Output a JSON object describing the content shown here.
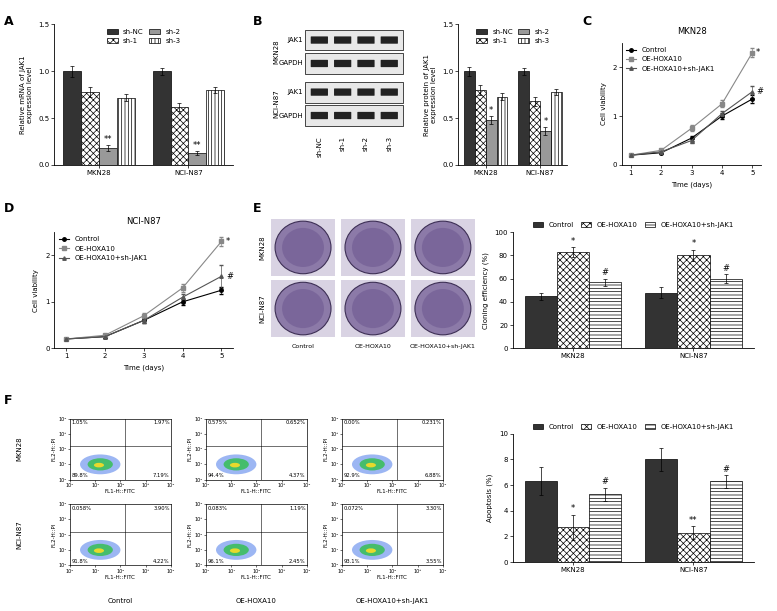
{
  "chart_data": [
    {
      "type": "bar",
      "panel_label": "A",
      "ylabel": "Relative mRNA of JAK1\nexpression level",
      "categories": [
        "MKN28",
        "NCI-N87"
      ],
      "ylim": [
        0.0,
        1.5
      ],
      "yticks": [
        0.0,
        0.5,
        1.0,
        1.5
      ],
      "legend": "upper center",
      "series": [
        {
          "name": "sh-NC",
          "color": "#333333",
          "values": [
            1.0,
            1.0
          ],
          "errors": [
            0.06,
            0.04
          ],
          "annotations": [
            null,
            null
          ]
        },
        {
          "name": "sh-1",
          "color": "#ffffff",
          "values": [
            0.78,
            0.62
          ],
          "errors": [
            0.05,
            0.04
          ],
          "annotations": [
            null,
            null
          ]
        },
        {
          "name": "sh-2",
          "color": "#999999",
          "values": [
            0.18,
            0.13
          ],
          "errors": [
            0.03,
            0.02
          ],
          "annotations": [
            "**",
            "**"
          ]
        },
        {
          "name": "sh-3",
          "color": "#ffffff",
          "values": [
            0.72,
            0.8
          ],
          "errors": [
            0.04,
            0.03
          ],
          "annotations": [
            null,
            null
          ]
        }
      ]
    },
    {
      "type": "bar",
      "ylabel": "Relative protein of JAK1\nexpression level",
      "categories": [
        "MKN28",
        "NCI-N87"
      ],
      "ylim": [
        0.0,
        1.5
      ],
      "yticks": [
        0.0,
        0.5,
        1.0,
        1.5
      ],
      "legend": "upper center",
      "series": [
        {
          "name": "sh-NC",
          "color": "#333333",
          "values": [
            1.0,
            1.0
          ],
          "errors": [
            0.05,
            0.04
          ],
          "annotations": [
            null,
            null
          ]
        },
        {
          "name": "sh-1",
          "color": "#ffffff",
          "values": [
            0.8,
            0.68
          ],
          "errors": [
            0.05,
            0.05
          ],
          "annotations": [
            null,
            null
          ]
        },
        {
          "name": "sh-2",
          "color": "#999999",
          "values": [
            0.48,
            0.36
          ],
          "errors": [
            0.04,
            0.04
          ],
          "annotations": [
            "*",
            "*"
          ]
        },
        {
          "name": "sh-3",
          "color": "#ffffff",
          "values": [
            0.73,
            0.78
          ],
          "errors": [
            0.04,
            0.03
          ],
          "annotations": [
            null,
            null
          ]
        }
      ]
    },
    {
      "type": "line",
      "panel_label": "C",
      "title": "MKN28",
      "xlabel": "Time (days)",
      "ylabel": "Cell viability",
      "x": [
        1,
        2,
        3,
        4,
        5
      ],
      "xlim": [
        0.7,
        5.3
      ],
      "xticks": [
        1,
        2,
        3,
        4,
        5
      ],
      "ylim": [
        0,
        2.5
      ],
      "yticks": [
        0,
        1,
        2
      ],
      "legend": "upper left",
      "series": [
        {
          "name": "Control",
          "color": "#000000",
          "marker": "circle",
          "values": [
            0.2,
            0.25,
            0.55,
            1.0,
            1.35
          ],
          "errors": [
            0.02,
            0.03,
            0.05,
            0.06,
            0.08
          ],
          "annotations": [
            null,
            null,
            null,
            null,
            null
          ]
        },
        {
          "name": "OE-HOXA10",
          "color": "#888888",
          "marker": "square",
          "values": [
            0.2,
            0.3,
            0.75,
            1.25,
            2.3
          ],
          "errors": [
            0.02,
            0.03,
            0.06,
            0.07,
            0.1
          ],
          "annotations": [
            null,
            null,
            null,
            null,
            "*"
          ]
        },
        {
          "name": "OE-HOXA10+sh-JAK1",
          "color": "#555555",
          "marker": "triangle",
          "values": [
            0.2,
            0.27,
            0.5,
            1.05,
            1.5
          ],
          "errors": [
            0.02,
            0.03,
            0.05,
            0.06,
            0.12
          ],
          "annotations": [
            null,
            null,
            null,
            null,
            "#"
          ]
        }
      ]
    },
    {
      "type": "line",
      "panel_label": "D",
      "title": "NCI-N87",
      "xlabel": "Time (days)",
      "ylabel": "Cell viability",
      "x": [
        1,
        2,
        3,
        4,
        5
      ],
      "xlim": [
        0.7,
        5.3
      ],
      "xticks": [
        1,
        2,
        3,
        4,
        5
      ],
      "ylim": [
        0,
        2.5
      ],
      "yticks": [
        0,
        1,
        2
      ],
      "legend": "upper left",
      "series": [
        {
          "name": "Control",
          "color": "#000000",
          "marker": "circle",
          "values": [
            0.2,
            0.25,
            0.6,
            1.0,
            1.25
          ],
          "errors": [
            0.02,
            0.03,
            0.05,
            0.06,
            0.08
          ],
          "annotations": [
            null,
            null,
            null,
            null,
            null
          ]
        },
        {
          "name": "OE-HOXA10",
          "color": "#888888",
          "marker": "square",
          "values": [
            0.2,
            0.28,
            0.7,
            1.3,
            2.3
          ],
          "errors": [
            0.02,
            0.03,
            0.06,
            0.08,
            0.1
          ],
          "annotations": [
            null,
            null,
            null,
            null,
            "*"
          ]
        },
        {
          "name": "OE-HOXA10+sh-JAK1",
          "color": "#555555",
          "marker": "triangle",
          "values": [
            0.2,
            0.25,
            0.6,
            1.1,
            1.55
          ],
          "errors": [
            0.02,
            0.03,
            0.05,
            0.07,
            0.25
          ],
          "annotations": [
            null,
            null,
            null,
            null,
            "#"
          ]
        }
      ]
    },
    {
      "type": "bar",
      "ylabel": "Cloning efficiency (%)",
      "categories": [
        "MKN28",
        "NCI-N87"
      ],
      "ylim": [
        0,
        100
      ],
      "yticks": [
        0,
        20,
        40,
        60,
        80,
        100
      ],
      "legend": "lower center",
      "series": [
        {
          "name": "Control",
          "color": "#333333",
          "values": [
            45,
            48
          ],
          "errors": [
            3,
            5
          ],
          "annotations": [
            null,
            null
          ]
        },
        {
          "name": "OE-HOXA10",
          "color": "#ffffff",
          "values": [
            83,
            80
          ],
          "errors": [
            4,
            5
          ],
          "annotations": [
            "*",
            "*"
          ]
        },
        {
          "name": "OE-HOXA10+sh-JAK1",
          "color": "#ffffff",
          "values": [
            57,
            60
          ],
          "errors": [
            3,
            4
          ],
          "annotations": [
            "#",
            "#"
          ]
        }
      ]
    },
    {
      "type": "bar",
      "ylabel": "Apoptosis (%)",
      "categories": [
        "MKN28",
        "NCI-N87"
      ],
      "ylim": [
        0,
        10
      ],
      "yticks": [
        0,
        2,
        4,
        6,
        8,
        10
      ],
      "legend": "lower center",
      "series": [
        {
          "name": "Control",
          "color": "#333333",
          "values": [
            6.3,
            8.0
          ],
          "errors": [
            1.1,
            0.9
          ],
          "annotations": [
            null,
            null
          ]
        },
        {
          "name": "OE-HOXA10",
          "color": "#ffffff",
          "values": [
            2.7,
            2.3
          ],
          "errors": [
            1.0,
            0.5
          ],
          "annotations": [
            "*",
            "**"
          ]
        },
        {
          "name": "OE-HOXA10+sh-JAK1",
          "color": "#ffffff",
          "values": [
            5.3,
            6.3
          ],
          "errors": [
            0.5,
            0.5
          ],
          "annotations": [
            "#",
            "#"
          ]
        }
      ]
    }
  ],
  "blot": {
    "panel_label": "B",
    "cell_lines": [
      "MKN28",
      "NCI-N87"
    ],
    "proteins": [
      "JAK1",
      "GAPDH"
    ],
    "lanes": [
      "sh-NC",
      "sh-1",
      "sh-2",
      "sh-3"
    ]
  },
  "colony": {
    "panel_label": "E",
    "rows": [
      "MKN28",
      "NCI-N87"
    ],
    "columns": [
      "Control",
      "OE-HOXA10",
      "OE-HOXA10+sh-JAK1"
    ]
  },
  "flow": {
    "panel_label": "F",
    "rows": [
      "MKN28",
      "NCI-N87"
    ],
    "columns": [
      "Control",
      "OE-HOXA10",
      "OE-HOXA10+sh-JAK1"
    ],
    "xlabel": "FL1-H::FITC",
    "ylabel": "FL2-H::PI",
    "ticks": [
      "10⁰",
      "10¹",
      "10²",
      "10³",
      "10⁴"
    ],
    "quadrants": [
      [
        {
          "UL": "1.05%",
          "UR": "1.97%",
          "LL": "89.8%",
          "LR": "7.19%"
        },
        {
          "UL": "0.575%",
          "UR": "0.652%",
          "LL": "94.4%",
          "LR": "4.37%"
        },
        {
          "UL": "0.00%",
          "UR": "0.231%",
          "LL": "92.9%",
          "LR": "6.88%"
        }
      ],
      [
        {
          "UL": "0.058%",
          "UR": "3.90%",
          "LL": "91.8%",
          "LR": "4.22%"
        },
        {
          "UL": "0.083%",
          "UR": "1.19%",
          "LL": "96.1%",
          "LR": "2.45%"
        },
        {
          "UL": "0.072%",
          "UR": "3.30%",
          "LL": "93.1%",
          "LR": "3.55%"
        }
      ]
    ]
  }
}
